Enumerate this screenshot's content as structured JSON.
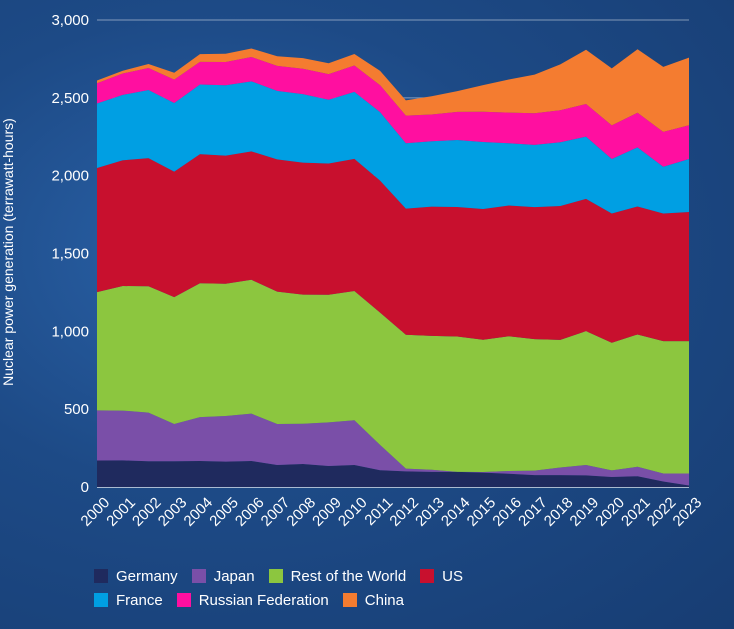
{
  "chart_data": {
    "type": "area",
    "stacked": true,
    "title": "",
    "xlabel": "",
    "ylabel": "Nuclear power generation (terrawatt-hours)",
    "ylim": [
      0,
      3000
    ],
    "yticks": [
      0,
      500,
      1000,
      1500,
      2000,
      2500,
      3000
    ],
    "ytick_labels": [
      "0",
      "500",
      "1,000",
      "1,500",
      "2,000",
      "2,500",
      "3,000"
    ],
    "categories": [
      "2000",
      "2001",
      "2002",
      "2003",
      "2004",
      "2005",
      "2006",
      "2007",
      "2008",
      "2009",
      "2010",
      "2011",
      "2012",
      "2013",
      "2014",
      "2015",
      "2016",
      "2017",
      "2018",
      "2019",
      "2020",
      "2021",
      "2022",
      "2023"
    ],
    "series": [
      {
        "name": "Germany",
        "color": "#1f2a5e",
        "values": [
          170,
          171,
          165,
          165,
          167,
          163,
          167,
          141,
          148,
          135,
          141,
          108,
          100,
          97,
          97,
          92,
          85,
          76,
          76,
          75,
          64,
          69,
          35,
          10
        ]
      },
      {
        "name": "Japan",
        "color": "#7a4fa8",
        "values": [
          322,
          320,
          313,
          240,
          282,
          293,
          304,
          264,
          258,
          280,
          288,
          162,
          18,
          14,
          0,
          4,
          18,
          29,
          49,
          66,
          43,
          61,
          52,
          77
        ]
      },
      {
        "name": "Rest of the World",
        "color": "#8cc63f",
        "values": [
          760,
          800,
          812,
          815,
          860,
          850,
          860,
          850,
          830,
          820,
          830,
          850,
          860,
          860,
          870,
          850,
          865,
          845,
          820,
          860,
          820,
          850,
          850,
          850
        ]
      },
      {
        "name": "US",
        "color": "#c8102e",
        "values": [
          797,
          808,
          823,
          806,
          829,
          823,
          825,
          850,
          848,
          843,
          849,
          848,
          810,
          830,
          832,
          840,
          840,
          848,
          860,
          850,
          830,
          822,
          820,
          830
        ]
      },
      {
        "name": "France",
        "color": "#009fe3",
        "values": [
          415,
          420,
          437,
          441,
          448,
          452,
          450,
          440,
          440,
          410,
          430,
          440,
          420,
          420,
          430,
          430,
          400,
          400,
          410,
          400,
          350,
          380,
          300,
          340
        ]
      },
      {
        "name": "Russian Federation",
        "color": "#ff0fa0",
        "values": [
          130,
          137,
          142,
          150,
          145,
          149,
          156,
          160,
          163,
          164,
          170,
          173,
          178,
          172,
          181,
          195,
          197,
          203,
          205,
          209,
          216,
          222,
          224,
          217
        ]
      },
      {
        "name": "China",
        "color": "#f47c30",
        "values": [
          17,
          18,
          25,
          44,
          50,
          53,
          55,
          62,
          68,
          70,
          74,
          92,
          98,
          117,
          133,
          171,
          213,
          248,
          295,
          349,
          366,
          408,
          418,
          434
        ]
      }
    ]
  }
}
